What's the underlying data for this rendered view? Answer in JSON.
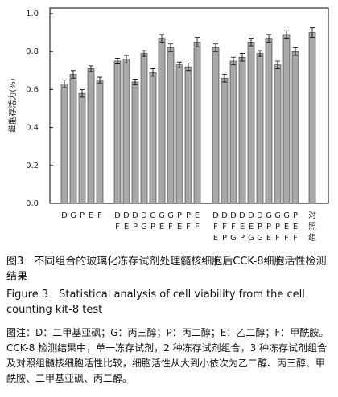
{
  "chart_data": {
    "type": "bar",
    "y_label": "细胞存活力(%)",
    "categories": [
      [
        "D"
      ],
      [
        "G"
      ],
      [
        "P"
      ],
      [
        "E"
      ],
      [
        "F"
      ],
      [
        "D",
        "F"
      ],
      [
        "D",
        "E"
      ],
      [
        "D",
        "P"
      ],
      [
        "D",
        "G"
      ],
      [
        "G",
        "P"
      ],
      [
        "G",
        "E"
      ],
      [
        "G",
        "F"
      ],
      [
        "P",
        "E"
      ],
      [
        "P",
        "F"
      ],
      [
        "E",
        "F"
      ],
      [
        "D",
        "F",
        "E"
      ],
      [
        "D",
        "F",
        "P"
      ],
      [
        "D",
        "F",
        "G"
      ],
      [
        "D",
        "E",
        "P"
      ],
      [
        "D",
        "E",
        "G"
      ],
      [
        "D",
        "P",
        "G"
      ],
      [
        "G",
        "P",
        "E"
      ],
      [
        "G",
        "P",
        "F"
      ],
      [
        "G",
        "E",
        "F"
      ],
      [
        "P",
        "E",
        "F"
      ],
      [
        "对",
        "照",
        "组"
      ]
    ],
    "values": [
      0.63,
      0.68,
      0.58,
      0.71,
      0.65,
      0.75,
      0.76,
      0.64,
      0.79,
      0.69,
      0.87,
      0.82,
      0.73,
      0.72,
      0.85,
      0.82,
      0.66,
      0.75,
      0.77,
      0.85,
      0.79,
      0.87,
      0.73,
      0.89,
      0.8,
      0.9
    ],
    "errors": [
      0.02,
      0.02,
      0.02,
      0.015,
      0.015,
      0.015,
      0.02,
      0.015,
      0.015,
      0.02,
      0.02,
      0.02,
      0.015,
      0.02,
      0.025,
      0.02,
      0.02,
      0.02,
      0.02,
      0.02,
      0.015,
      0.02,
      0.02,
      0.02,
      0.02,
      0.025
    ],
    "color": "#a8a8a8",
    "ylim": [
      0,
      1.0
    ],
    "yticks": [
      {
        "value": 0,
        "label": "0.0"
      },
      {
        "value": 0.2,
        "label": "0.2"
      },
      {
        "value": 0.4,
        "label": "0.4"
      },
      {
        "value": 0.6,
        "label": "0.6"
      },
      {
        "value": 0.8,
        "label": "0.8"
      },
      {
        "value": 1.0,
        "label": "1.0"
      }
    ]
  },
  "caption": {
    "cn_title": "图3　不同组合的玻璃化冻存试剂处理髓核细胞后CCK-8细胞活性检测结果",
    "en_title": "Figure 3　Statistical analysis of cell viability from the cell counting kit-8 test",
    "note": "图注：D：二甲基亚砜；G：丙三醇；P：丙二醇；E：乙二醇；F：甲酰胺。CCK-8 检测结果中，单一冻存试剂，2 种冻存试剂组合，3 种冻存试剂组合及对照组髓核细胞活性比较，细胞活性从大到小依次为乙二醇、丙三醇、甲酰胺、二甲基亚砜、丙二醇。"
  }
}
